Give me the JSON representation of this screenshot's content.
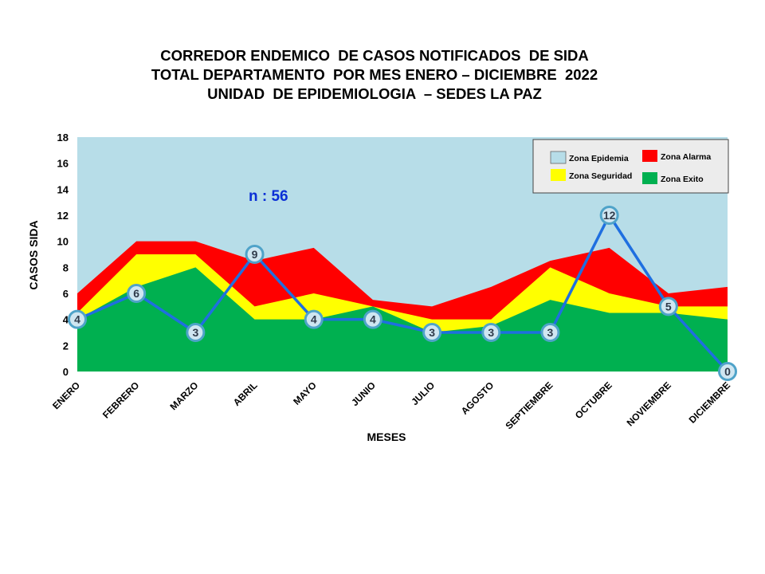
{
  "title_lines": [
    "CORREDOR ENDEMICO  DE CASOS NOTIFICADOS  DE SIDA",
    "TOTAL DEPARTAMENTO  POR MES ENERO – DICIEMBRE  2022",
    "UNIDAD  DE EPIDEMIOLOGIA  – SEDES LA PAZ"
  ],
  "chart_data": {
    "type": "area",
    "xlabel": "MESES",
    "ylabel": "CASOS SIDA",
    "ylim": [
      0,
      18
    ],
    "yticks": [
      0,
      2,
      4,
      6,
      8,
      10,
      12,
      14,
      16,
      18
    ],
    "grid": false,
    "legend_position": "top-right",
    "categories": [
      "ENERO",
      "FEBRERO",
      "MARZO",
      "ABRIL",
      "MAYO",
      "JUNIO",
      "JULIO",
      "AGOSTO",
      "SEPTIEMBRE",
      "OCTUBRE",
      "NOVIEMBRE",
      "DICIEMBRE"
    ],
    "zones": [
      {
        "name": "Zona Epidemia",
        "color": "#b7dde8",
        "top": 18
      },
      {
        "name": "Zona Alarma",
        "color": "#ff0000",
        "values": [
          6,
          10,
          10,
          8.5,
          9.5,
          5.5,
          5,
          6.5,
          8.5,
          9.5,
          6,
          6.5
        ]
      },
      {
        "name": "Zona Seguridad",
        "color": "#ffff00",
        "values": [
          4.5,
          9,
          9,
          5,
          6,
          5,
          4,
          4,
          8,
          6,
          5,
          5
        ]
      },
      {
        "name": "Zona Exito",
        "color": "#00b050",
        "values": [
          4,
          6.5,
          8,
          4,
          4,
          5,
          3,
          3.5,
          5.5,
          4.5,
          4.5,
          4
        ]
      }
    ],
    "series": [
      {
        "values": [
          4,
          6,
          3,
          9,
          4,
          4,
          3,
          3,
          3,
          12,
          5,
          0
        ],
        "color": "#1f6fe0"
      }
    ],
    "annotation": "n : 56"
  }
}
